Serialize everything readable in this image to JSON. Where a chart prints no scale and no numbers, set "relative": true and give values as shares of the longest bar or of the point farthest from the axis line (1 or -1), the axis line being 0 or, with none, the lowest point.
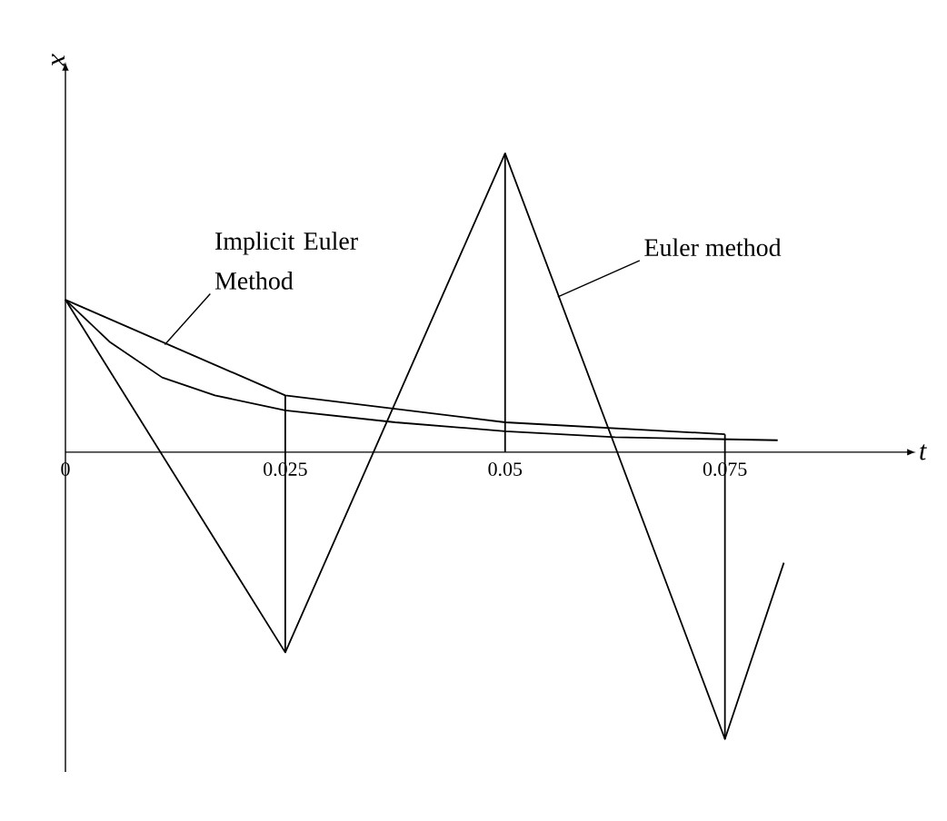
{
  "chart_data": {
    "type": "line",
    "relative": true,
    "xlabel": "t",
    "ylabel": "x",
    "xlim": [
      0,
      0.0955
    ],
    "xticks": [
      0,
      0.025,
      0.05,
      0.075
    ],
    "series": [
      {
        "color": "#000000",
        "x": [
          0,
          0.025,
          0.05,
          0.075,
          0.0817
        ],
        "values": [
          0.51,
          -0.67,
          1,
          -0.96,
          -0.37
        ]
      },
      {
        "color": "#000000",
        "x": [
          0,
          0.025,
          0.05,
          0.075
        ],
        "values": [
          0.51,
          0.19,
          0.1,
          0.06
        ]
      },
      {
        "color": "#000000",
        "x": [
          0,
          0.005,
          0.011,
          0.017,
          0.025,
          0.0375,
          0.05,
          0.0625,
          0.081
        ],
        "values": [
          0.51,
          0.37,
          0.25,
          0.19,
          0.14,
          0.1,
          0.07,
          0.05,
          0.04
        ]
      },
      {
        "color": "#000000",
        "x": [
          0.025,
          0.025
        ],
        "values": [
          -0.67,
          0.19
        ]
      },
      {
        "color": "#000000",
        "x": [
          0.05,
          0.05
        ],
        "values": [
          0,
          1
        ]
      },
      {
        "color": "#000000",
        "x": [
          0.075,
          0.075
        ],
        "values": [
          -0.96,
          0.06
        ]
      }
    ],
    "annotations": [
      {
        "text": "Implicit Euler Method",
        "x": 0.0113,
        "y": 0.36
      },
      {
        "text": "Euler method",
        "x": 0.056,
        "y": 0.52
      }
    ]
  }
}
